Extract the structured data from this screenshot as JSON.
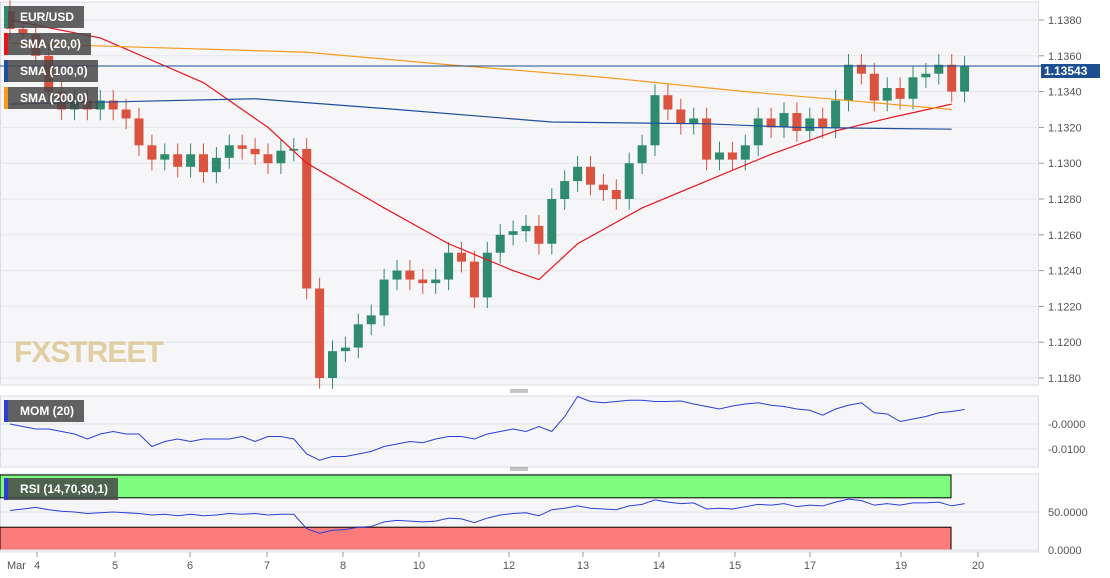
{
  "chart_data": [
    {
      "type": "candlestick",
      "title": "EUR/USD",
      "ylim": [
        1.1172,
        1.1392
      ],
      "yticks": [
        "1.1380",
        "1.1360",
        "1.1340",
        "1.1320",
        "1.1300",
        "1.1280",
        "1.1260",
        "1.1240",
        "1.1220",
        "1.1200",
        "1.1180"
      ],
      "last_price": "1.13543",
      "closes": [
        1.1375,
        1.1372,
        1.136,
        1.134,
        1.133,
        1.1335,
        1.133,
        1.1335,
        1.133,
        1.1325,
        1.131,
        1.1302,
        1.1305,
        1.1298,
        1.1305,
        1.1295,
        1.1303,
        1.131,
        1.1308,
        1.1305,
        1.13,
        1.1307,
        1.1308,
        1.123,
        1.118,
        1.1195,
        1.1197,
        1.121,
        1.1215,
        1.1235,
        1.124,
        1.1235,
        1.1233,
        1.1235,
        1.125,
        1.1245,
        1.1225,
        1.125,
        1.126,
        1.1262,
        1.1265,
        1.1255,
        1.128,
        1.129,
        1.1298,
        1.1288,
        1.1285,
        1.128,
        1.13,
        1.131,
        1.1338,
        1.133,
        1.1322,
        1.1325,
        1.1302,
        1.1306,
        1.1302,
        1.131,
        1.1325,
        1.132,
        1.1328,
        1.1318,
        1.1325,
        1.132,
        1.1335,
        1.1355,
        1.135,
        1.1335,
        1.1342,
        1.1336,
        1.1348,
        1.135,
        1.1355,
        1.134,
        1.1354
      ],
      "first_open": 1.1385,
      "series": [
        {
          "name": "SMA (20,0)",
          "color": "#e8141c",
          "points": [
            [
              0,
              1.138
            ],
            [
              7,
              1.137
            ],
            [
              15,
              1.1345
            ],
            [
              20,
              1.132
            ],
            [
              23,
              1.13
            ],
            [
              29,
              1.1275
            ],
            [
              34,
              1.1255
            ],
            [
              39,
              1.124
            ],
            [
              41,
              1.1235
            ],
            [
              44,
              1.1255
            ],
            [
              49,
              1.1275
            ],
            [
              54,
              1.129
            ],
            [
              59,
              1.1305
            ],
            [
              64,
              1.1318
            ],
            [
              68,
              1.1325
            ],
            [
              73,
              1.1333
            ]
          ]
        },
        {
          "name": "SMA (100,0)",
          "color": "#1f4e9c",
          "points": [
            [
              0,
              1.1333
            ],
            [
              19,
              1.1336
            ],
            [
              30,
              1.133
            ],
            [
              42,
              1.1323
            ],
            [
              54,
              1.1322
            ],
            [
              61,
              1.132
            ],
            [
              73,
              1.1319
            ]
          ]
        },
        {
          "name": "SMA (200,0)",
          "color": "#f39c1f",
          "points": [
            [
              0,
              1.1367
            ],
            [
              23,
              1.1362
            ],
            [
              34,
              1.1355
            ],
            [
              46,
              1.1348
            ],
            [
              57,
              1.134
            ],
            [
              65,
              1.1335
            ],
            [
              73,
              1.133
            ]
          ]
        }
      ]
    },
    {
      "type": "line",
      "title": "MOM (20)",
      "ylim": [
        -0.017,
        0.0125
      ],
      "yticks": [
        "-0.0000",
        "-0.0100"
      ],
      "color": "#2b3fd6",
      "values": [
        0.0,
        -0.001,
        -0.002,
        -0.002,
        -0.003,
        -0.004,
        -0.006,
        -0.004,
        -0.003,
        -0.004,
        -0.004,
        -0.009,
        -0.007,
        -0.006,
        -0.007,
        -0.006,
        -0.006,
        -0.006,
        -0.005,
        -0.007,
        -0.005,
        -0.005,
        -0.006,
        -0.012,
        -0.0145,
        -0.013,
        -0.013,
        -0.012,
        -0.011,
        -0.009,
        -0.008,
        -0.007,
        -0.0075,
        -0.006,
        -0.005,
        -0.005,
        -0.006,
        -0.004,
        -0.003,
        -0.002,
        -0.003,
        -0.001,
        -0.003,
        0.003,
        0.011,
        0.009,
        0.0085,
        0.009,
        0.0095,
        0.0095,
        0.009,
        0.009,
        0.0092,
        0.008,
        0.007,
        0.006,
        0.0072,
        0.008,
        0.0085,
        0.0075,
        0.007,
        0.006,
        0.0055,
        0.0035,
        0.006,
        0.0075,
        0.0085,
        0.0045,
        0.004,
        0.001,
        0.002,
        0.003,
        0.0045,
        0.005,
        0.0058
      ]
    },
    {
      "type": "line",
      "title": "RSI (14,70,30,1)",
      "ylim": [
        0,
        100
      ],
      "yticks": [
        "50.0000",
        "0.0000"
      ],
      "color": "#2b3fd6",
      "overbought": 70,
      "oversold": 30,
      "values": [
        52,
        54,
        56,
        53,
        51,
        50,
        48,
        49,
        50,
        49,
        48,
        46,
        47,
        45,
        47,
        45,
        46,
        48,
        47,
        48,
        46,
        47,
        47,
        28,
        22,
        26,
        27,
        30,
        31,
        37,
        39,
        38,
        37,
        38,
        42,
        41,
        36,
        42,
        46,
        48,
        49,
        45,
        53,
        55,
        58,
        55,
        54,
        53,
        58,
        60,
        66,
        63,
        61,
        62,
        54,
        55,
        54,
        57,
        60,
        59,
        61,
        57,
        59,
        58,
        63,
        67,
        65,
        59,
        61,
        59,
        62,
        62,
        63,
        58,
        61
      ]
    },
    {
      "type": "x-axis",
      "labels": [
        "Mar",
        "4",
        "5",
        "6",
        "7",
        "8",
        "10",
        "12",
        "13",
        "14",
        "15",
        "17",
        "19",
        "20"
      ]
    }
  ],
  "branding": "FXSTREET"
}
